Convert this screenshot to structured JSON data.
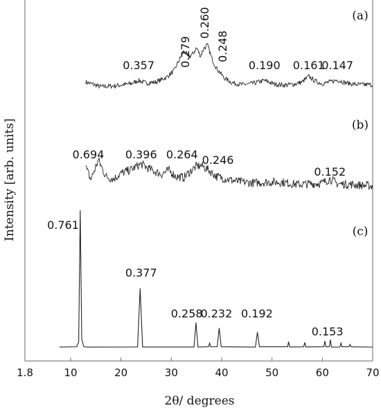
{
  "chart_data": {
    "type": "line",
    "xlabel": "2θ/ degrees",
    "ylabel": "Intensity [arb. units]",
    "xlim": [
      8,
      70
    ],
    "xticks": [
      "1.8",
      "10",
      "20",
      "30",
      "40",
      "50",
      "60",
      "70"
    ],
    "grid": false,
    "legend": "none",
    "line_color": "#222222",
    "series": [
      {
        "panel": "(a)",
        "x": [
          13,
          16,
          19,
          22,
          23.5,
          25,
          27,
          29,
          30.5,
          31.5,
          32.5,
          33.5,
          34.3,
          35,
          35.8,
          36.5,
          37.2,
          38,
          39,
          40.5,
          42,
          44,
          46,
          48.5,
          50.5,
          52.5,
          54.5,
          56,
          57.3,
          58.5,
          60,
          61.5,
          63,
          64.5,
          66,
          68,
          70
        ],
        "values": [
          1.5,
          0.6,
          0.8,
          1.2,
          1.8,
          1.3,
          1.5,
          2.4,
          3.6,
          5.6,
          7.4,
          6.3,
          6.9,
          8.1,
          6.5,
          8.0,
          8.6,
          6.1,
          4.1,
          2.3,
          1.4,
          1.0,
          1.2,
          1.8,
          1.1,
          0.9,
          1.1,
          1.5,
          2.6,
          1.7,
          1.2,
          1.5,
          1.9,
          1.4,
          1.1,
          1.0,
          1.0
        ],
        "peak_labels": [
          {
            "x": 23.5,
            "label": "0.357"
          },
          {
            "x": 32,
            "label": "0.279"
          },
          {
            "x": 34.5,
            "label": "0.260"
          },
          {
            "x": 37,
            "label": "0.248"
          },
          {
            "x": 48.5,
            "label": "0.190"
          },
          {
            "x": 57.3,
            "label": "0.161"
          },
          {
            "x": 63,
            "label": "0.147"
          }
        ]
      },
      {
        "panel": "(b)",
        "x": [
          13,
          14,
          15.5,
          17,
          18.5,
          20,
          22,
          24,
          25,
          26.5,
          28,
          29.5,
          31,
          32.5,
          34,
          35,
          36,
          37.5,
          39,
          41,
          43,
          46,
          49,
          52,
          55,
          58,
          60,
          61.5,
          63,
          66,
          70
        ],
        "values": [
          3.0,
          1.4,
          3.9,
          1.8,
          1.5,
          2.2,
          2.7,
          3.4,
          3.0,
          2.5,
          2.1,
          2.6,
          1.8,
          1.7,
          2.6,
          3.1,
          3.2,
          2.6,
          1.8,
          1.5,
          1.2,
          1.0,
          1.1,
          1.1,
          0.8,
          0.9,
          1.0,
          1.5,
          0.9,
          0.8,
          0.6
        ],
        "peak_labels": [
          {
            "x": 13.5,
            "label": "0.694"
          },
          {
            "x": 24,
            "label": "0.396"
          },
          {
            "x": 33.5,
            "label": "0.264"
          },
          {
            "x": 36.5,
            "label": "0.246"
          },
          {
            "x": 61.5,
            "label": "0.152"
          }
        ]
      },
      {
        "panel": "(c)",
        "x": [
          8,
          11.2,
          11.6,
          11.9,
          12.2,
          12.6,
          13.5,
          23.3,
          23.8,
          24.3,
          34.5,
          34.9,
          35.3,
          37.4,
          37.6,
          37.8,
          39.1,
          39.5,
          39.9,
          46.7,
          47.1,
          47.5,
          53.1,
          53.3,
          53.5,
          56.3,
          56.5,
          56.7,
          60.3,
          60.5,
          60.7,
          61.4,
          61.6,
          61.8,
          63.5,
          63.7,
          63.9,
          65.3,
          65.5,
          65.7,
          70
        ],
        "values": [
          0.1,
          0.2,
          4.0,
          100,
          6.0,
          0.2,
          0.1,
          0.2,
          43,
          0.2,
          0.2,
          18,
          0.2,
          0.2,
          3.0,
          0.2,
          0.2,
          14,
          0.2,
          0.2,
          11,
          0.2,
          0.2,
          4.0,
          0.2,
          0.2,
          3.5,
          0.2,
          0.2,
          4.5,
          0.2,
          0.2,
          5.5,
          0.2,
          0.2,
          3.0,
          0.2,
          0.2,
          2.0,
          0.2,
          0.1
        ],
        "peak_labels": [
          {
            "x": 12,
            "label": "0.761"
          },
          {
            "x": 24,
            "label": "0.377"
          },
          {
            "x": 35,
            "label": "0.258"
          },
          {
            "x": 39.5,
            "label": "0.232"
          },
          {
            "x": 47,
            "label": "0.192"
          },
          {
            "x": 61,
            "label": "0.153"
          }
        ]
      }
    ]
  }
}
